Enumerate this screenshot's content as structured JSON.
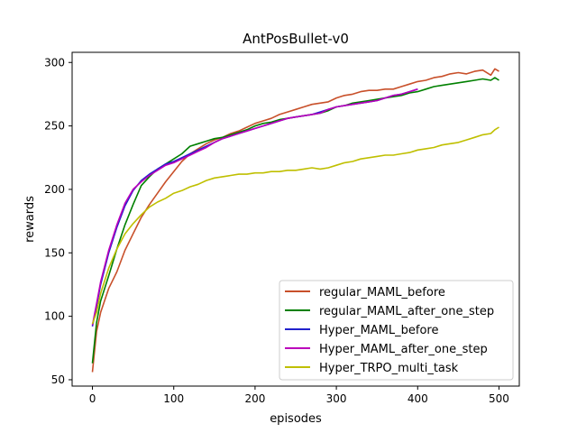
{
  "chart_data": {
    "type": "line",
    "title": "AntPosBullet-v0",
    "xlabel": "episodes",
    "ylabel": "rewards",
    "xlim": [
      -25,
      525
    ],
    "ylim": [
      45,
      308
    ],
    "xticks": [
      0,
      100,
      200,
      300,
      400,
      500
    ],
    "yticks": [
      50,
      100,
      150,
      200,
      250,
      300
    ],
    "grid": false,
    "legend_position": "lower right",
    "series": [
      {
        "name": "regular_MAML_before",
        "color": "#c8502a",
        "x": [
          0,
          5,
          10,
          20,
          30,
          40,
          50,
          60,
          70,
          80,
          90,
          100,
          110,
          120,
          130,
          140,
          150,
          160,
          170,
          180,
          190,
          200,
          210,
          220,
          230,
          240,
          250,
          260,
          270,
          280,
          290,
          300,
          310,
          320,
          330,
          340,
          350,
          360,
          370,
          380,
          390,
          400,
          410,
          420,
          430,
          440,
          450,
          460,
          470,
          480,
          490,
          495,
          500
        ],
        "values": [
          56,
          88,
          103,
          122,
          135,
          152,
          165,
          178,
          188,
          197,
          206,
          214,
          222,
          228,
          232,
          236,
          239,
          241,
          244,
          246,
          249,
          252,
          254,
          256,
          259,
          261,
          263,
          265,
          267,
          268,
          269,
          272,
          274,
          275,
          277,
          278,
          278,
          279,
          279,
          281,
          283,
          285,
          286,
          288,
          289,
          291,
          292,
          291,
          293,
          294,
          290,
          295,
          293
        ]
      },
      {
        "name": "regular_MAML_after_one_step",
        "color": "#008000",
        "x": [
          0,
          5,
          10,
          20,
          30,
          40,
          50,
          60,
          70,
          80,
          90,
          100,
          110,
          120,
          130,
          140,
          150,
          160,
          170,
          180,
          190,
          200,
          210,
          220,
          230,
          240,
          250,
          260,
          270,
          280,
          290,
          300,
          310,
          320,
          330,
          340,
          350,
          360,
          370,
          380,
          390,
          400,
          410,
          420,
          430,
          440,
          450,
          460,
          470,
          480,
          490,
          495,
          500
        ],
        "values": [
          63,
          95,
          112,
          132,
          153,
          172,
          188,
          203,
          210,
          216,
          220,
          224,
          228,
          234,
          236,
          238,
          240,
          241,
          243,
          245,
          247,
          250,
          252,
          253,
          255,
          256,
          257,
          258,
          259,
          260,
          262,
          265,
          266,
          268,
          269,
          270,
          271,
          272,
          273,
          274,
          276,
          277,
          279,
          281,
          282,
          283,
          284,
          285,
          286,
          287,
          286,
          288,
          286
        ]
      },
      {
        "name": "Hyper_MAML_before",
        "color": "#2222cc",
        "x": [
          0,
          5,
          10,
          20,
          30,
          40,
          50,
          60,
          70,
          80,
          90,
          100,
          110,
          120,
          130,
          140,
          150,
          160,
          170,
          180,
          190,
          200,
          210,
          220,
          230,
          240,
          250,
          260,
          270,
          280,
          290,
          300,
          310,
          320,
          330,
          340,
          350,
          360,
          370,
          380,
          390,
          400
        ],
        "values": [
          92,
          108,
          125,
          150,
          170,
          187,
          199,
          207,
          212,
          216,
          220,
          222,
          225,
          228,
          231,
          234,
          237,
          240,
          242,
          244,
          246,
          248,
          250,
          252,
          254,
          256,
          257,
          258,
          259,
          261,
          263,
          265,
          266,
          267,
          268,
          269,
          270,
          272,
          274,
          275,
          277,
          279
        ]
      },
      {
        "name": "Hyper_MAML_after_one_step",
        "color": "#bb00bb",
        "x": [
          0,
          5,
          10,
          20,
          30,
          40,
          50,
          60,
          70,
          80,
          90,
          100,
          110,
          120,
          130,
          140,
          150,
          160,
          170,
          180,
          190,
          200,
          210,
          220,
          230,
          240,
          250,
          260,
          270,
          280,
          290,
          300,
          310,
          320,
          330,
          340,
          350,
          360,
          370,
          380,
          390,
          400
        ],
        "values": [
          93,
          110,
          127,
          152,
          172,
          189,
          200,
          206,
          211,
          215,
          219,
          221,
          224,
          227,
          230,
          233,
          237,
          240,
          242,
          244,
          246,
          248,
          250,
          252,
          254,
          256,
          257,
          258,
          259,
          260,
          263,
          265,
          266,
          267,
          268,
          269,
          270,
          272,
          274,
          275,
          277,
          279
        ]
      },
      {
        "name": "Hyper_TRPO_multi_task",
        "color": "#bfbf00",
        "x": [
          0,
          5,
          10,
          20,
          30,
          40,
          50,
          60,
          70,
          80,
          90,
          100,
          110,
          120,
          130,
          140,
          150,
          160,
          170,
          180,
          190,
          200,
          210,
          220,
          230,
          240,
          250,
          260,
          270,
          280,
          290,
          300,
          310,
          320,
          330,
          340,
          350,
          360,
          370,
          380,
          390,
          400,
          410,
          420,
          430,
          440,
          450,
          460,
          470,
          480,
          490,
          495,
          500
        ],
        "values": [
          94,
          103,
          118,
          138,
          153,
          165,
          173,
          180,
          186,
          190,
          193,
          197,
          199,
          202,
          204,
          207,
          209,
          210,
          211,
          212,
          212,
          213,
          213,
          214,
          214,
          215,
          215,
          216,
          217,
          216,
          217,
          219,
          221,
          222,
          224,
          225,
          226,
          227,
          227,
          228,
          229,
          231,
          232,
          233,
          235,
          236,
          237,
          239,
          241,
          243,
          244,
          247,
          249
        ]
      }
    ]
  }
}
